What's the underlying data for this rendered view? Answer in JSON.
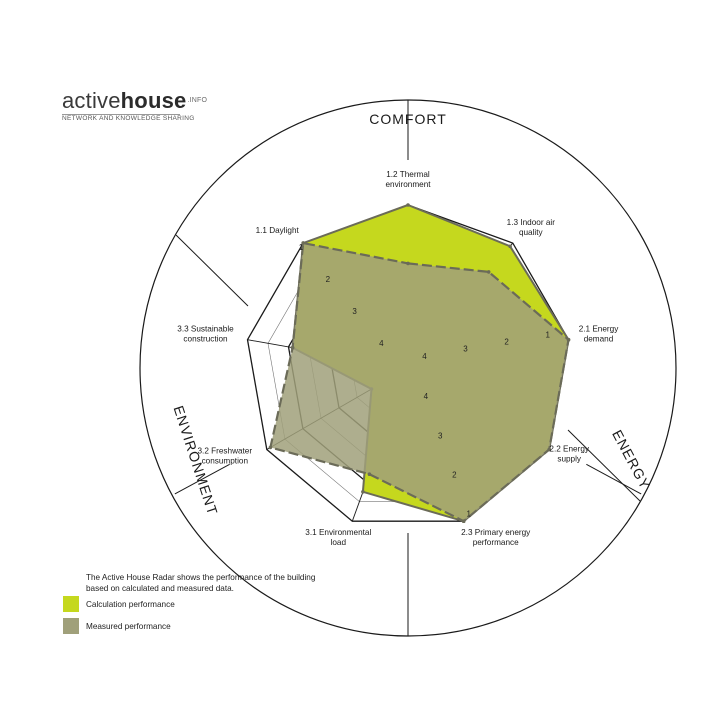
{
  "logo": {
    "brand_part1": "active",
    "brand_part2": "house",
    "suffix": ".INFO",
    "tagline": "NETWORK AND KNOWLEDGE SHARING"
  },
  "chart_data": {
    "type": "radar",
    "title": "",
    "scale_labels": [
      "1",
      "2",
      "3",
      "4"
    ],
    "sections": [
      {
        "name": "COMFORT"
      },
      {
        "name": "ENERGY"
      },
      {
        "name": "ENVIRONMENT"
      }
    ],
    "axes": [
      "1.2 Thermal environment",
      "1.3 Indoor air quality",
      "2.1 Energy demand",
      "2.2 Energy supply",
      "2.3 Primary energy performance",
      "3.1 Environmental load",
      "3.2 Freshwater consumption",
      "3.3 Sustainable construction",
      "1.1 Daylight"
    ],
    "axis_label_lines": [
      [
        "1.2 Thermal",
        "environment"
      ],
      [
        "1.3 Indoor air",
        "quality"
      ],
      [
        "2.1 Energy",
        "demand"
      ],
      [
        "2.2 Energy",
        "supply"
      ],
      [
        "2.3 Primary energy",
        "performance"
      ],
      [
        "3.1 Environmental",
        "load"
      ],
      [
        "3.2 Freshwater",
        "consumption"
      ],
      [
        "3.3 Sustainable",
        "construction"
      ],
      [
        "1.1 Daylight"
      ]
    ],
    "series": [
      {
        "name": "Calculation performance",
        "color": "#c5d81e",
        "values": [
          1.0,
          1.1,
          1.0,
          1.0,
          1.0,
          1.75,
          3.9,
          2.1,
          1.0
        ]
      },
      {
        "name": "Measured performance",
        "color": "#a0a07a",
        "values": [
          2.4,
          1.9,
          1.0,
          1.0,
          1.0,
          2.2,
          1.1,
          2.1,
          1.0
        ]
      }
    ],
    "scale": {
      "outer": 1,
      "inner": 4,
      "rings": 7
    }
  },
  "note": "The Active House Radar shows the performance of the building based on calculated and measured data.",
  "legend": [
    {
      "label": "Calculation performance",
      "color": "#c5d81e"
    },
    {
      "label": "Measured performance",
      "color": "#a0a07a"
    }
  ]
}
